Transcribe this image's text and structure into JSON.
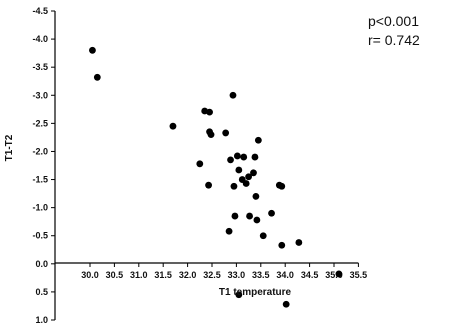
{
  "chart_data": {
    "type": "scatter",
    "title": "",
    "xlabel": "T1 temperature",
    "ylabel": "T1-T2",
    "xlim": [
      29.5,
      35.5
    ],
    "ylim": [
      1.0,
      -4.5
    ],
    "x_ticks": [
      "30.0",
      "30.5",
      "31.0",
      "31.5",
      "32.0",
      "32.5",
      "33.0",
      "33.5",
      "34.0",
      "34.5",
      "35.0",
      "35.5"
    ],
    "x_tick_values": [
      30.0,
      30.5,
      31.0,
      31.5,
      32.0,
      32.5,
      33.0,
      33.5,
      34.0,
      34.5,
      35.0,
      35.5
    ],
    "y_ticks": [
      "-4.5",
      "-4.0",
      "-3.5",
      "-3.0",
      "-2.5",
      "-2.0",
      "-1.5",
      "-1.0",
      "-0.5",
      "0.0",
      "0.5",
      "1.0"
    ],
    "y_tick_values": [
      -4.5,
      -4.0,
      -3.5,
      -3.0,
      -2.5,
      -2.0,
      -1.5,
      -1.0,
      -0.5,
      0.0,
      0.5,
      1.0
    ],
    "annotations": [
      "p<0.001",
      "r= 0.742"
    ],
    "series": [
      {
        "points": [
          {
            "x": 30.05,
            "y": -3.8
          },
          {
            "x": 30.15,
            "y": -3.32
          },
          {
            "x": 31.7,
            "y": -2.45
          },
          {
            "x": 32.25,
            "y": -1.78
          },
          {
            "x": 32.35,
            "y": -2.72
          },
          {
            "x": 32.45,
            "y": -2.7
          },
          {
            "x": 32.45,
            "y": -2.35
          },
          {
            "x": 32.48,
            "y": -2.3
          },
          {
            "x": 32.43,
            "y": -1.4
          },
          {
            "x": 32.78,
            "y": -2.33
          },
          {
            "x": 32.85,
            "y": -0.58
          },
          {
            "x": 32.88,
            "y": -1.85
          },
          {
            "x": 32.93,
            "y": -3.0
          },
          {
            "x": 32.95,
            "y": -1.38
          },
          {
            "x": 32.97,
            "y": -0.85
          },
          {
            "x": 33.02,
            "y": -1.92
          },
          {
            "x": 33.05,
            "y": -1.67
          },
          {
            "x": 33.15,
            "y": -1.9
          },
          {
            "x": 33.12,
            "y": -1.5
          },
          {
            "x": 33.2,
            "y": -1.43
          },
          {
            "x": 33.25,
            "y": -1.55
          },
          {
            "x": 33.27,
            "y": -0.85
          },
          {
            "x": 33.35,
            "y": -1.62
          },
          {
            "x": 33.4,
            "y": -1.2
          },
          {
            "x": 33.38,
            "y": -1.9
          },
          {
            "x": 33.42,
            "y": -0.78
          },
          {
            "x": 33.45,
            "y": -2.2
          },
          {
            "x": 33.55,
            "y": -0.5
          },
          {
            "x": 33.72,
            "y": -0.9
          },
          {
            "x": 33.88,
            "y": -1.4
          },
          {
            "x": 33.93,
            "y": -1.38
          },
          {
            "x": 33.93,
            "y": -0.33
          },
          {
            "x": 34.02,
            "y": 0.72
          },
          {
            "x": 34.28,
            "y": -0.38
          },
          {
            "x": 35.1,
            "y": 0.18
          },
          {
            "x": 33.05,
            "y": 0.55
          }
        ]
      }
    ]
  }
}
